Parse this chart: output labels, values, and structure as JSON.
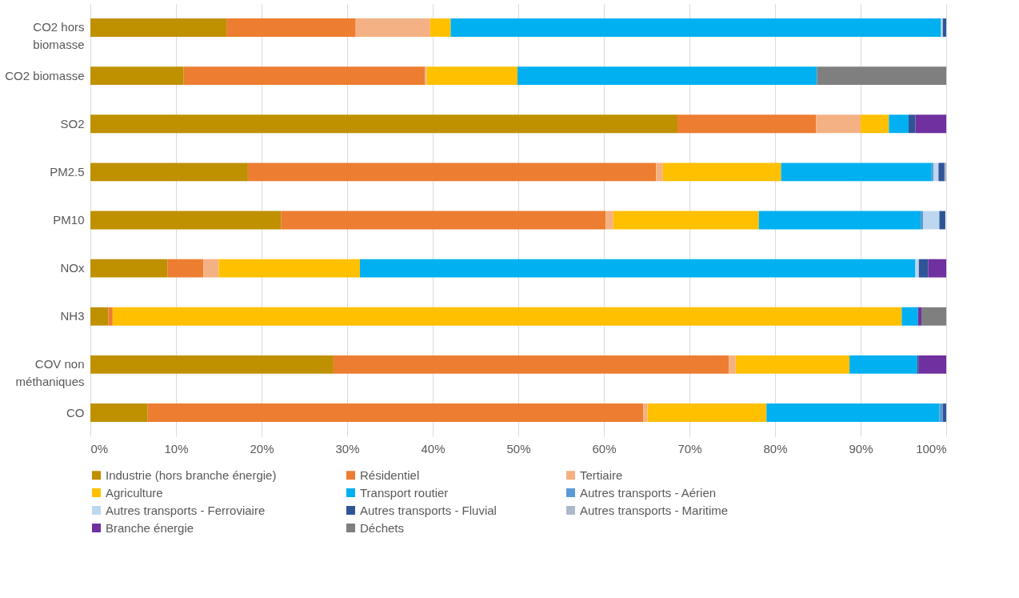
{
  "chart_data": {
    "type": "bar",
    "orientation": "horizontal",
    "stacked": true,
    "categories": [
      "CO2 hors biomasse",
      "CO2 biomasse",
      "SO2",
      "PM2.5",
      "PM10",
      "NOx",
      "NH3",
      "COV non méthaniques",
      "CO"
    ],
    "series": [
      {
        "name": "Industrie (hors branche énergie)",
        "color": "#bf9000",
        "values": [
          15.9,
          10.9,
          68.6,
          18.4,
          22.3,
          9.0,
          2.1,
          28.4,
          6.7
        ]
      },
      {
        "name": "Résidentiel",
        "color": "#ed7d31",
        "values": [
          15.1,
          28.2,
          16.2,
          47.7,
          37.9,
          4.2,
          0.5,
          46.2,
          57.9
        ]
      },
      {
        "name": "Tertiaire",
        "color": "#f4b183",
        "values": [
          8.7,
          0.2,
          5.2,
          0.8,
          0.9,
          1.8,
          0,
          0.8,
          0.5
        ]
      },
      {
        "name": "Agriculture",
        "color": "#ffc000",
        "values": [
          2.4,
          10.6,
          3.3,
          13.8,
          17.0,
          16.5,
          92.2,
          13.3,
          13.9
        ]
      },
      {
        "name": "Transport routier",
        "color": "#00b0f0",
        "values": [
          57.3,
          35.0,
          2.3,
          17.6,
          18.9,
          64.9,
          1.9,
          7.9,
          20.2
        ]
      },
      {
        "name": "Autres transports - Aérien",
        "color": "#5b9bd5",
        "values": [
          0,
          0,
          0,
          0.2,
          0.3,
          0,
          0,
          0,
          0.4
        ]
      },
      {
        "name": "Autres transports - Ferroviaire",
        "color": "#bdd7ee",
        "values": [
          0.2,
          0,
          0,
          0.6,
          1.9,
          0.4,
          0,
          0,
          0
        ]
      },
      {
        "name": "Autres transports - Fluvial",
        "color": "#2f5597",
        "values": [
          0.4,
          0,
          0.8,
          0.7,
          0.7,
          1.1,
          0,
          0.2,
          0.4
        ]
      },
      {
        "name": "Autres transports - Maritime",
        "color": "#adb9ca",
        "values": [
          0,
          0,
          0,
          0.2,
          null,
          0,
          0,
          0,
          0
        ]
      },
      {
        "name": "Branche énergie",
        "color": "#7030a0",
        "values": [
          0,
          0,
          3.6,
          0,
          0,
          2.1,
          0.4,
          3.2,
          0
        ]
      },
      {
        "name": "Déchets",
        "color": "#7f7f7f",
        "values": [
          0,
          15.1,
          0,
          0,
          0,
          0,
          2.9,
          0,
          0
        ]
      }
    ],
    "xlim": [
      0,
      100
    ],
    "xticks": [
      {
        "value": 0,
        "label": "0%"
      },
      {
        "value": 10,
        "label": "10%"
      },
      {
        "value": 20,
        "label": "20%"
      },
      {
        "value": 30,
        "label": "30%"
      },
      {
        "value": 40,
        "label": "40%"
      },
      {
        "value": 50,
        "label": "50%"
      },
      {
        "value": 60,
        "label": "60%"
      },
      {
        "value": 70,
        "label": "70%"
      },
      {
        "value": 80,
        "label": "80%"
      },
      {
        "value": 90,
        "label": "90%"
      },
      {
        "value": 100,
        "label": "100%"
      }
    ],
    "grid": "x",
    "legend": "bottom"
  }
}
